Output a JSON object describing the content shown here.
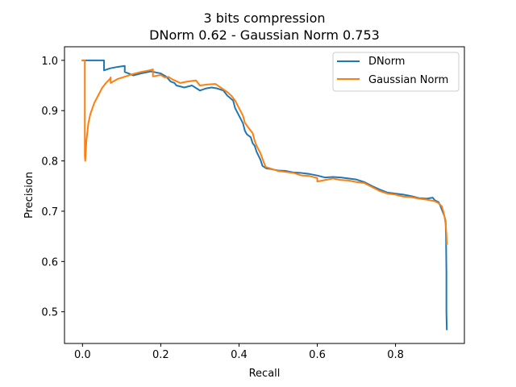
{
  "chart_data": {
    "type": "line",
    "title": "3 bits compression",
    "subtitle": "DNorm 0.62 - Gaussian Norm 0.753",
    "xlabel": "Recall",
    "ylabel": "Precision",
    "xlim": [
      -0.046,
      0.976
    ],
    "ylim": [
      0.437,
      1.027
    ],
    "xticks": [
      "0.0",
      "0.2",
      "0.4",
      "0.6",
      "0.8"
    ],
    "xtick_values": [
      0.0,
      0.2,
      0.4,
      0.6,
      0.8
    ],
    "yticks": [
      "0.5",
      "0.6",
      "0.7",
      "0.8",
      "0.9",
      "1.0"
    ],
    "ytick_values": [
      0.5,
      0.6,
      0.7,
      0.8,
      0.9,
      1.0
    ],
    "grid": false,
    "legend_position": "top-right",
    "series": [
      {
        "name": "DNorm",
        "color": "#1f77b4",
        "points": [
          [
            0.0,
            1.0
          ],
          [
            0.055,
            1.0
          ],
          [
            0.055,
            0.98
          ],
          [
            0.07,
            0.984
          ],
          [
            0.09,
            0.987
          ],
          [
            0.108,
            0.989
          ],
          [
            0.108,
            0.977
          ],
          [
            0.13,
            0.97
          ],
          [
            0.15,
            0.974
          ],
          [
            0.175,
            0.978
          ],
          [
            0.2,
            0.974
          ],
          [
            0.215,
            0.967
          ],
          [
            0.225,
            0.958
          ],
          [
            0.235,
            0.955
          ],
          [
            0.24,
            0.95
          ],
          [
            0.26,
            0.946
          ],
          [
            0.28,
            0.95
          ],
          [
            0.3,
            0.94
          ],
          [
            0.315,
            0.944
          ],
          [
            0.33,
            0.946
          ],
          [
            0.345,
            0.944
          ],
          [
            0.36,
            0.94
          ],
          [
            0.37,
            0.93
          ],
          [
            0.385,
            0.92
          ],
          [
            0.39,
            0.905
          ],
          [
            0.4,
            0.89
          ],
          [
            0.41,
            0.875
          ],
          [
            0.415,
            0.86
          ],
          [
            0.42,
            0.853
          ],
          [
            0.43,
            0.847
          ],
          [
            0.435,
            0.835
          ],
          [
            0.44,
            0.83
          ],
          [
            0.445,
            0.818
          ],
          [
            0.45,
            0.81
          ],
          [
            0.455,
            0.802
          ],
          [
            0.46,
            0.79
          ],
          [
            0.47,
            0.785
          ],
          [
            0.48,
            0.784
          ],
          [
            0.5,
            0.781
          ],
          [
            0.52,
            0.78
          ],
          [
            0.54,
            0.777
          ],
          [
            0.56,
            0.776
          ],
          [
            0.58,
            0.774
          ],
          [
            0.6,
            0.771
          ],
          [
            0.62,
            0.767
          ],
          [
            0.64,
            0.768
          ],
          [
            0.66,
            0.767
          ],
          [
            0.68,
            0.765
          ],
          [
            0.7,
            0.763
          ],
          [
            0.72,
            0.758
          ],
          [
            0.74,
            0.75
          ],
          [
            0.76,
            0.743
          ],
          [
            0.78,
            0.737
          ],
          [
            0.8,
            0.735
          ],
          [
            0.82,
            0.733
          ],
          [
            0.84,
            0.73
          ],
          [
            0.86,
            0.726
          ],
          [
            0.88,
            0.725
          ],
          [
            0.895,
            0.727
          ],
          [
            0.9,
            0.722
          ],
          [
            0.91,
            0.718
          ],
          [
            0.915,
            0.71
          ],
          [
            0.92,
            0.7
          ],
          [
            0.925,
            0.69
          ],
          [
            0.928,
            0.68
          ],
          [
            0.929,
            0.65
          ],
          [
            0.93,
            0.58
          ],
          [
            0.93,
            0.5
          ],
          [
            0.931,
            0.465
          ]
        ]
      },
      {
        "name": "Gaussian Norm",
        "color": "#ff7f0e",
        "points": [
          [
            0.0,
            1.0
          ],
          [
            0.006,
            1.0
          ],
          [
            0.006,
            0.81
          ],
          [
            0.007,
            0.8
          ],
          [
            0.01,
            0.84
          ],
          [
            0.015,
            0.875
          ],
          [
            0.02,
            0.893
          ],
          [
            0.03,
            0.915
          ],
          [
            0.04,
            0.93
          ],
          [
            0.05,
            0.945
          ],
          [
            0.06,
            0.955
          ],
          [
            0.07,
            0.963
          ],
          [
            0.072,
            0.966
          ],
          [
            0.072,
            0.955
          ],
          [
            0.09,
            0.963
          ],
          [
            0.11,
            0.968
          ],
          [
            0.13,
            0.973
          ],
          [
            0.15,
            0.977
          ],
          [
            0.17,
            0.98
          ],
          [
            0.18,
            0.982
          ],
          [
            0.18,
            0.968
          ],
          [
            0.2,
            0.971
          ],
          [
            0.21,
            0.966
          ],
          [
            0.22,
            0.967
          ],
          [
            0.23,
            0.962
          ],
          [
            0.25,
            0.955
          ],
          [
            0.27,
            0.958
          ],
          [
            0.29,
            0.96
          ],
          [
            0.3,
            0.95
          ],
          [
            0.32,
            0.952
          ],
          [
            0.34,
            0.953
          ],
          [
            0.355,
            0.945
          ],
          [
            0.37,
            0.937
          ],
          [
            0.38,
            0.93
          ],
          [
            0.39,
            0.92
          ],
          [
            0.4,
            0.905
          ],
          [
            0.41,
            0.89
          ],
          [
            0.415,
            0.876
          ],
          [
            0.425,
            0.865
          ],
          [
            0.435,
            0.855
          ],
          [
            0.44,
            0.84
          ],
          [
            0.445,
            0.83
          ],
          [
            0.455,
            0.815
          ],
          [
            0.462,
            0.8
          ],
          [
            0.468,
            0.788
          ],
          [
            0.48,
            0.785
          ],
          [
            0.5,
            0.78
          ],
          [
            0.52,
            0.778
          ],
          [
            0.54,
            0.776
          ],
          [
            0.56,
            0.771
          ],
          [
            0.58,
            0.77
          ],
          [
            0.6,
            0.766
          ],
          [
            0.6,
            0.759
          ],
          [
            0.62,
            0.762
          ],
          [
            0.64,
            0.765
          ],
          [
            0.66,
            0.762
          ],
          [
            0.68,
            0.761
          ],
          [
            0.7,
            0.758
          ],
          [
            0.72,
            0.756
          ],
          [
            0.74,
            0.748
          ],
          [
            0.76,
            0.74
          ],
          [
            0.78,
            0.735
          ],
          [
            0.8,
            0.733
          ],
          [
            0.82,
            0.729
          ],
          [
            0.84,
            0.728
          ],
          [
            0.86,
            0.725
          ],
          [
            0.88,
            0.723
          ],
          [
            0.9,
            0.72
          ],
          [
            0.91,
            0.716
          ],
          [
            0.918,
            0.71
          ],
          [
            0.922,
            0.7
          ],
          [
            0.925,
            0.69
          ],
          [
            0.928,
            0.675
          ],
          [
            0.93,
            0.655
          ],
          [
            0.931,
            0.635
          ]
        ]
      }
    ]
  }
}
